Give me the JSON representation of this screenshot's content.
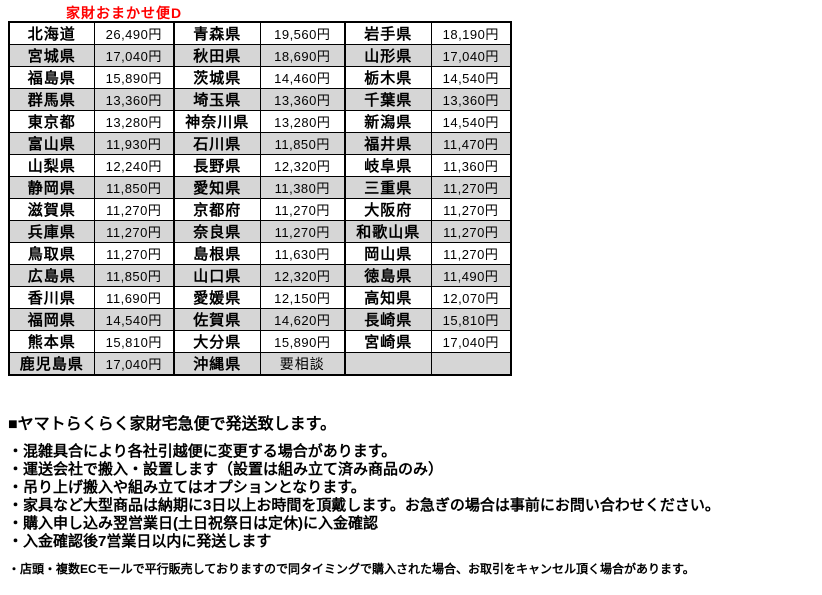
{
  "title": "家財おまかせ便D",
  "colors": {
    "title_red": "#ff0000",
    "stripe_gray": "#d6d6d6",
    "border_black": "#000000",
    "background": "#ffffff"
  },
  "table": {
    "consult_label": "要相談",
    "rows": [
      [
        "北海道",
        "26,490円",
        "青森県",
        "19,560円",
        "岩手県",
        "18,190円"
      ],
      [
        "宮城県",
        "17,040円",
        "秋田県",
        "18,690円",
        "山形県",
        "17,040円"
      ],
      [
        "福島県",
        "15,890円",
        "茨城県",
        "14,460円",
        "栃木県",
        "14,540円"
      ],
      [
        "群馬県",
        "13,360円",
        "埼玉県",
        "13,360円",
        "千葉県",
        "13,360円"
      ],
      [
        "東京都",
        "13,280円",
        "神奈川県",
        "13,280円",
        "新潟県",
        "14,540円"
      ],
      [
        "富山県",
        "11,930円",
        "石川県",
        "11,850円",
        "福井県",
        "11,470円"
      ],
      [
        "山梨県",
        "12,240円",
        "長野県",
        "12,320円",
        "岐阜県",
        "11,360円"
      ],
      [
        "静岡県",
        "11,850円",
        "愛知県",
        "11,380円",
        "三重県",
        "11,270円"
      ],
      [
        "滋賀県",
        "11,270円",
        "京都府",
        "11,270円",
        "大阪府",
        "11,270円"
      ],
      [
        "兵庫県",
        "11,270円",
        "奈良県",
        "11,270円",
        "和歌山県",
        "11,270円"
      ],
      [
        "鳥取県",
        "11,270円",
        "島根県",
        "11,630円",
        "岡山県",
        "11,270円"
      ],
      [
        "広島県",
        "11,850円",
        "山口県",
        "12,320円",
        "徳島県",
        "11,490円"
      ],
      [
        "香川県",
        "11,690円",
        "愛媛県",
        "12,150円",
        "高知県",
        "12,070円"
      ],
      [
        "福岡県",
        "14,540円",
        "佐賀県",
        "14,620円",
        "長崎県",
        "15,810円"
      ],
      [
        "熊本県",
        "15,810円",
        "大分県",
        "15,890円",
        "宮崎県",
        "17,040円"
      ],
      [
        "鹿児島県",
        "17,040円",
        "沖縄県",
        "要相談",
        "",
        ""
      ]
    ]
  },
  "notes": {
    "heading": "■ヤマトらくらく家財宅急便で発送致します。",
    "items": [
      "・混雑具合により各社引越便に変更する場合があります。",
      "・運送会社で搬入・設置します（設置は組み立て済み商品のみ）",
      "・吊り上げ搬入や組み立てはオプションとなります。",
      "・家具など大型商品は納期に3日以上お時間を頂戴します。お急ぎの場合は事前にお問い合わせください。",
      "・購入申し込み翌営業日(土日祝祭日は定休)に入金確認",
      "・入金確認後7営業日以内に発送します"
    ],
    "small_note": "・店頭・複数ECモールで平行販売しておりますので同タイミングで購入された場合、お取引をキャンセル頂く場合があります。"
  }
}
